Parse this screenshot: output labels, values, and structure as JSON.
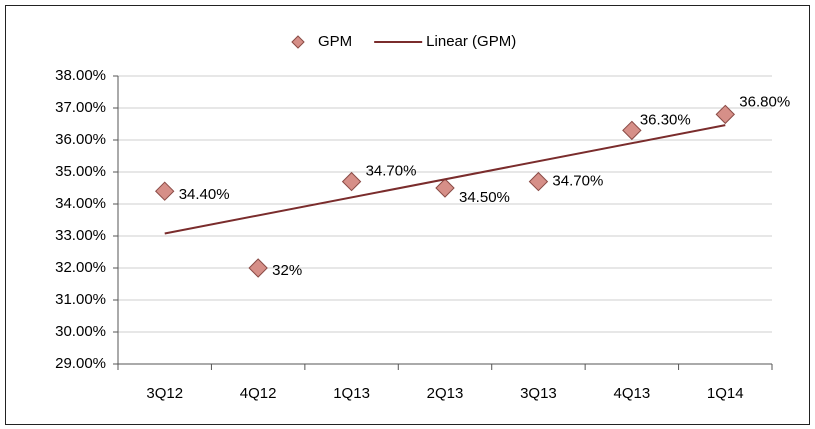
{
  "chart_data": {
    "type": "scatter",
    "categories": [
      "3Q12",
      "4Q12",
      "1Q13",
      "2Q13",
      "3Q13",
      "4Q13",
      "1Q14"
    ],
    "series": [
      {
        "name": "GPM",
        "color": "#d68f88",
        "values": [
          34.4,
          32,
          34.7,
          34.5,
          34.7,
          36.3,
          36.8
        ],
        "value_labels": [
          "34.40%",
          "32%",
          "34.70%",
          "34.50%",
          "34.70%",
          "36.30%",
          "36.80%"
        ]
      },
      {
        "name": "Linear (GPM)",
        "color": "#7a2c2c",
        "trendline": "linear"
      }
    ],
    "ylim": [
      29,
      38
    ],
    "yticks": [
      {
        "value": 29,
        "label": "29.00%"
      },
      {
        "value": 30,
        "label": "30.00%"
      },
      {
        "value": 31,
        "label": "31.00%"
      },
      {
        "value": 32,
        "label": "32.00%"
      },
      {
        "value": 33,
        "label": "33.00%"
      },
      {
        "value": 34,
        "label": "34.00%"
      },
      {
        "value": 35,
        "label": "35.00%"
      },
      {
        "value": 36,
        "label": "36.00%"
      },
      {
        "value": 37,
        "label": "37.00%"
      },
      {
        "value": 38,
        "label": "38.00%"
      }
    ],
    "grid": true,
    "legend": "top"
  }
}
